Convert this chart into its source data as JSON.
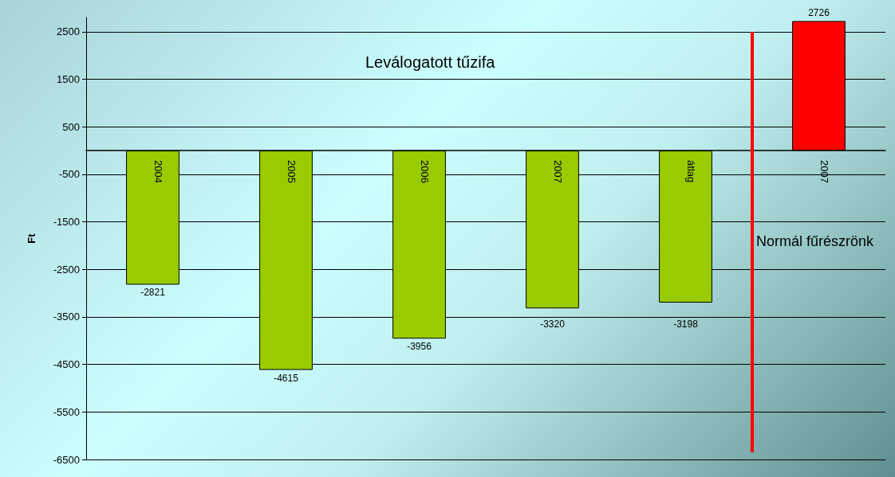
{
  "chart_data": {
    "type": "bar",
    "ylabel": "Ft",
    "categories": [
      "2004",
      "2005",
      "2006",
      "2007",
      "átlag",
      "2007"
    ],
    "values": [
      -2821,
      -4615,
      -3956,
      -3320,
      -3198,
      2726
    ],
    "colors": [
      "#99cc00",
      "#99cc00",
      "#99cc00",
      "#99cc00",
      "#99cc00",
      "#ff0000"
    ],
    "ylim": [
      -6500,
      2800
    ],
    "yticks": [
      -6500,
      -5500,
      -4500,
      -3500,
      -2500,
      -1500,
      -500,
      500,
      1500,
      2500
    ],
    "grid": "y",
    "data_labels": true,
    "annotations": [
      "Leválogatott tűzifa",
      "Normál fűrészrönk"
    ]
  }
}
